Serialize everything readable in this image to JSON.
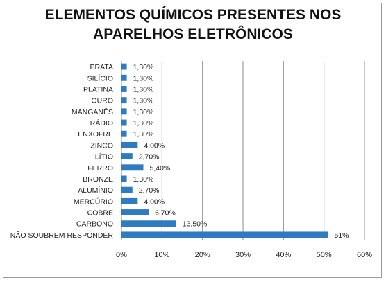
{
  "chart_data": {
    "type": "bar",
    "orientation": "horizontal",
    "title": [
      "ELEMENTOS QUÍMICOS PRESENTES NOS",
      "APARELHOS ELETRÔNICOS"
    ],
    "categories": [
      "PRATA",
      "SILÍCIO",
      "PLATINA",
      "OURO",
      "MANGANÊS",
      "RÁDIO",
      "ENXOFRE",
      "ZINCO",
      "LÍTIO",
      "FERRO",
      "BRONZE",
      "ALUMÍNIO",
      "MERCÚRIO",
      "COBRE",
      "CARBONO",
      "NÃO SOUBREM RESPONDER"
    ],
    "values": [
      1.3,
      1.3,
      1.3,
      1.3,
      1.3,
      1.3,
      1.3,
      4.0,
      2.7,
      5.4,
      1.3,
      2.7,
      4.0,
      6.7,
      13.5,
      51
    ],
    "data_labels": [
      "1,30%",
      "1,30%",
      "1,30%",
      "1,30%",
      "1,30%",
      "1,30%",
      "1,30%",
      "4,00%",
      "2,70%",
      "5,40%",
      "1,30%",
      "2,70%",
      "4,00%",
      "6,70%",
      "13,50%",
      "51%"
    ],
    "xlim": [
      0,
      60
    ],
    "x_ticks": [
      "0%",
      "10%",
      "20%",
      "30%",
      "40%",
      "50%",
      "60%"
    ],
    "grid": true,
    "legend": "none",
    "bar_color": "#2e7bbf",
    "grid_color": "#8c8c8c"
  }
}
